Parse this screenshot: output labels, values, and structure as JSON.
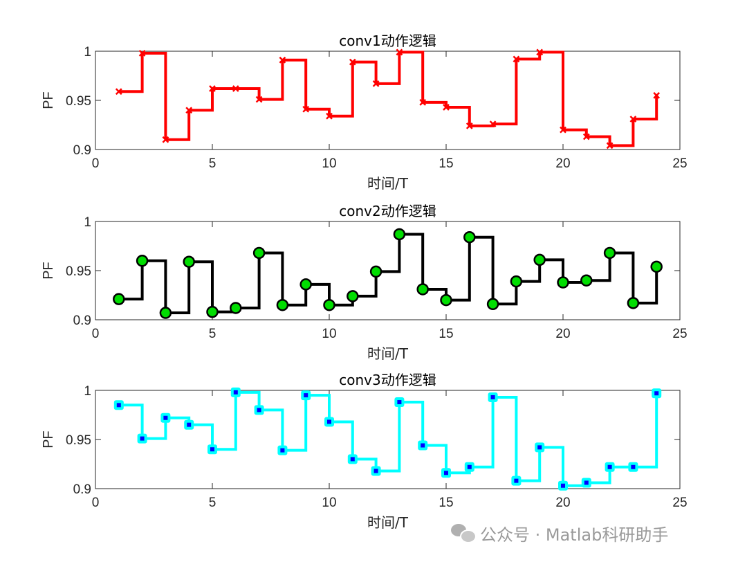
{
  "chart_data": [
    {
      "type": "line",
      "subtype": "step",
      "title": "conv1动作逻辑",
      "xlabel": "时间/T",
      "ylabel": "PF",
      "xlim": [
        0,
        25
      ],
      "ylim": [
        0.9,
        1
      ],
      "x_ticks": [
        "0",
        "5",
        "10",
        "15",
        "20",
        "25"
      ],
      "y_ticks": [
        "0.9",
        "0.95",
        "1"
      ],
      "series": [
        {
          "x": [
            1,
            2,
            3,
            4,
            5,
            6,
            7,
            8,
            9,
            10,
            11,
            12,
            13,
            14,
            15,
            16,
            17,
            18,
            19,
            20,
            21,
            22,
            23,
            24
          ],
          "values": [
            0.959,
            0.998,
            0.91,
            0.94,
            0.962,
            0.962,
            0.951,
            0.991,
            0.941,
            0.934,
            0.989,
            0.967,
            0.999,
            0.948,
            0.943,
            0.924,
            0.926,
            0.992,
            0.999,
            0.92,
            0.913,
            0.904,
            0.931,
            0.955
          ],
          "color": "#ff0000",
          "marker": "x",
          "marker_color": "#ff0000"
        }
      ]
    },
    {
      "type": "line",
      "subtype": "step",
      "title": "conv2动作逻辑",
      "xlabel": "时间/T",
      "ylabel": "PF",
      "xlim": [
        0,
        25
      ],
      "ylim": [
        0.9,
        1
      ],
      "x_ticks": [
        "0",
        "5",
        "10",
        "15",
        "20",
        "25"
      ],
      "y_ticks": [
        "0.9",
        "0.95",
        "1"
      ],
      "series": [
        {
          "x": [
            1,
            2,
            3,
            4,
            5,
            6,
            7,
            8,
            9,
            10,
            11,
            12,
            13,
            14,
            15,
            16,
            17,
            18,
            19,
            20,
            21,
            22,
            23,
            24
          ],
          "values": [
            0.921,
            0.96,
            0.907,
            0.959,
            0.908,
            0.912,
            0.968,
            0.915,
            0.936,
            0.915,
            0.924,
            0.949,
            0.987,
            0.931,
            0.92,
            0.984,
            0.916,
            0.939,
            0.961,
            0.938,
            0.94,
            0.968,
            0.917,
            0.954
          ],
          "color": "#000000",
          "marker": "circle",
          "marker_color": "#00dd00"
        }
      ]
    },
    {
      "type": "line",
      "subtype": "step",
      "title": "conv3动作逻辑",
      "xlabel": "时间/T",
      "ylabel": "PF",
      "xlim": [
        0,
        25
      ],
      "ylim": [
        0.9,
        1
      ],
      "x_ticks": [
        "0",
        "5",
        "10",
        "15",
        "20",
        "25"
      ],
      "y_ticks": [
        "0.9",
        "0.95",
        "1"
      ],
      "series": [
        {
          "x": [
            1,
            2,
            3,
            4,
            5,
            6,
            7,
            8,
            9,
            10,
            11,
            12,
            13,
            14,
            15,
            16,
            17,
            18,
            19,
            20,
            21,
            22,
            23,
            24
          ],
          "values": [
            0.985,
            0.951,
            0.972,
            0.965,
            0.94,
            0.998,
            0.98,
            0.939,
            0.995,
            0.968,
            0.93,
            0.918,
            0.988,
            0.944,
            0.916,
            0.922,
            0.993,
            0.908,
            0.942,
            0.903,
            0.906,
            0.922,
            0.922,
            0.997
          ],
          "color": "#00ffff",
          "marker": "square",
          "marker_color": "#0000ff"
        }
      ]
    }
  ],
  "watermark": {
    "icon": "wechat-icon",
    "text": "公众号 · Matlab科研助手"
  }
}
